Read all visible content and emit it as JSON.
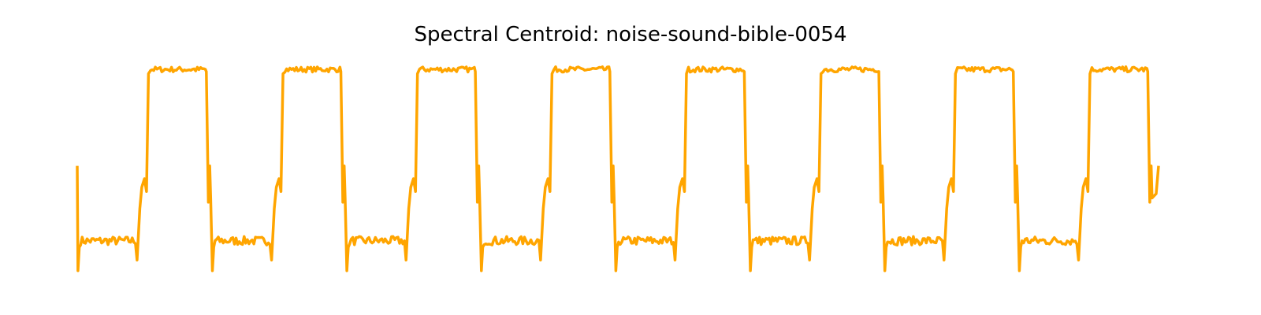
{
  "chart_data": {
    "type": "line",
    "title": "Spectral Centroid: noise-sound-bible-0054",
    "xlabel": "",
    "ylabel": "",
    "axes_visible": false,
    "grid": false,
    "legend": "none",
    "ylim": [
      0,
      1
    ],
    "series": [
      {
        "color": "#ffa500",
        "cycles": 8,
        "segment_values": {
          "start": 0.52,
          "drop": 0.03,
          "low_plateau": 0.17,
          "low_plateau_end": 0.08,
          "ramp_1": 0.32,
          "ramp_2": 0.42,
          "ramp_3": 0.46,
          "high_plateau": 0.97,
          "high_plateau_end": 0.35,
          "final": 0.52
        }
      }
    ]
  }
}
